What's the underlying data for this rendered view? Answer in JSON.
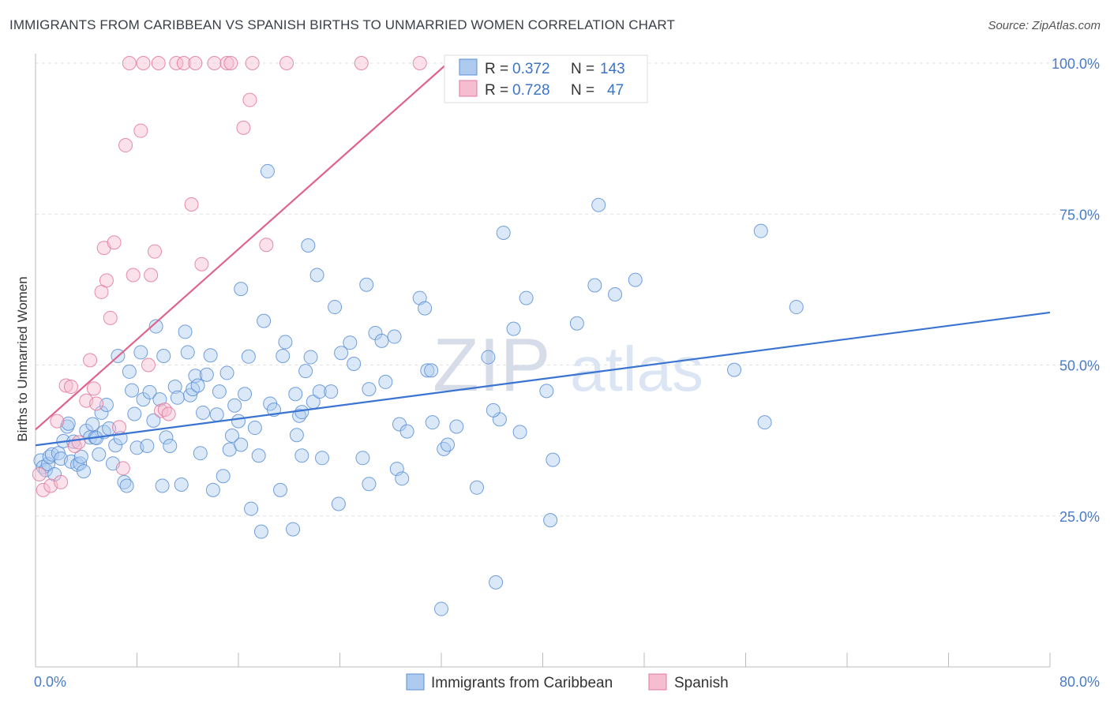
{
  "title": "IMMIGRANTS FROM CARIBBEAN VS SPANISH BIRTHS TO UNMARRIED WOMEN CORRELATION CHART",
  "source": "Source: ZipAtlas.com",
  "watermark": {
    "zip": "ZIP",
    "atlas": "atlas"
  },
  "chart_data": {
    "type": "scatter",
    "xlabel": "",
    "ylabel": "Births to Unmarried Women",
    "xlim": [
      0,
      80
    ],
    "ylim": [
      0,
      100
    ],
    "x_tick_labels": [
      {
        "value": 0,
        "label": "0.0%"
      },
      {
        "value": 80,
        "label": "80.0%"
      }
    ],
    "y_tick_labels": [
      {
        "value": 25,
        "label": "25.0%"
      },
      {
        "value": 50,
        "label": "50.0%"
      },
      {
        "value": 75,
        "label": "75.0%"
      },
      {
        "value": 100,
        "label": "100.0%"
      }
    ],
    "legend": {
      "placement": "bottom",
      "stats": [
        {
          "r_label": "R =",
          "r": "0.372",
          "n_label": "N =",
          "n": "143"
        },
        {
          "r_label": "R =",
          "r": "0.728",
          "n_label": "N =",
          "n": "47"
        }
      ]
    },
    "series": [
      {
        "name": "Immigrants from Caribbean",
        "color": "#5b8fd6",
        "fill": "#aecbef",
        "trend": {
          "x": [
            0,
            80
          ],
          "y": [
            36.7,
            58.7
          ]
        },
        "points": [
          [
            0.4,
            34.2
          ],
          [
            0.6,
            33.1
          ],
          [
            0.8,
            32.6
          ],
          [
            1.0,
            33.6
          ],
          [
            1.1,
            34.8
          ],
          [
            1.3,
            35.2
          ],
          [
            1.5,
            31.9
          ],
          [
            1.8,
            35.4
          ],
          [
            2.0,
            34.5
          ],
          [
            2.2,
            37.4
          ],
          [
            2.5,
            39.8
          ],
          [
            2.6,
            40.3
          ],
          [
            2.8,
            34.0
          ],
          [
            3.0,
            37.3
          ],
          [
            3.3,
            33.5
          ],
          [
            3.5,
            33.7
          ],
          [
            3.6,
            34.8
          ],
          [
            3.8,
            32.4
          ],
          [
            4.0,
            39.1
          ],
          [
            4.3,
            38.0
          ],
          [
            4.5,
            40.2
          ],
          [
            4.7,
            38.0
          ],
          [
            4.8,
            37.9
          ],
          [
            5.0,
            35.2
          ],
          [
            5.2,
            42.1
          ],
          [
            5.4,
            38.9
          ],
          [
            5.6,
            43.4
          ],
          [
            5.8,
            39.5
          ],
          [
            6.1,
            33.7
          ],
          [
            6.3,
            36.7
          ],
          [
            6.5,
            51.5
          ],
          [
            6.7,
            37.9
          ],
          [
            7.0,
            30.6
          ],
          [
            7.2,
            30.0
          ],
          [
            7.4,
            48.9
          ],
          [
            7.6,
            45.8
          ],
          [
            7.8,
            41.9
          ],
          [
            8.0,
            36.3
          ],
          [
            8.3,
            52.1
          ],
          [
            8.5,
            44.3
          ],
          [
            8.8,
            36.6
          ],
          [
            9.0,
            45.5
          ],
          [
            9.3,
            40.8
          ],
          [
            9.5,
            56.4
          ],
          [
            9.8,
            44.3
          ],
          [
            10.0,
            30.0
          ],
          [
            10.1,
            51.5
          ],
          [
            10.3,
            38.0
          ],
          [
            10.6,
            36.6
          ],
          [
            11.0,
            46.4
          ],
          [
            11.2,
            44.6
          ],
          [
            11.5,
            30.2
          ],
          [
            11.8,
            55.5
          ],
          [
            12.0,
            52.1
          ],
          [
            12.2,
            45.0
          ],
          [
            12.4,
            46.0
          ],
          [
            12.6,
            48.2
          ],
          [
            12.8,
            46.6
          ],
          [
            13.0,
            35.4
          ],
          [
            13.2,
            42.1
          ],
          [
            13.5,
            48.4
          ],
          [
            13.8,
            51.6
          ],
          [
            14.0,
            29.3
          ],
          [
            14.3,
            41.8
          ],
          [
            14.5,
            45.6
          ],
          [
            14.8,
            31.6
          ],
          [
            15.1,
            48.7
          ],
          [
            15.3,
            36.0
          ],
          [
            15.5,
            38.3
          ],
          [
            15.7,
            43.3
          ],
          [
            16.0,
            40.7
          ],
          [
            16.2,
            62.6
          ],
          [
            16.5,
            45.2
          ],
          [
            16.8,
            51.4
          ],
          [
            17.0,
            26.2
          ],
          [
            17.3,
            39.6
          ],
          [
            17.6,
            35.0
          ],
          [
            17.8,
            22.4
          ],
          [
            18.0,
            57.3
          ],
          [
            18.5,
            43.6
          ],
          [
            18.8,
            42.6
          ],
          [
            19.3,
            29.3
          ],
          [
            19.5,
            51.5
          ],
          [
            19.7,
            53.8
          ],
          [
            20.3,
            22.8
          ],
          [
            20.5,
            45.2
          ],
          [
            20.8,
            41.6
          ],
          [
            21.0,
            42.2
          ],
          [
            21.3,
            49.0
          ],
          [
            21.5,
            69.8
          ],
          [
            21.7,
            51.3
          ],
          [
            21.9,
            43.9
          ],
          [
            22.2,
            64.9
          ],
          [
            22.4,
            45.6
          ],
          [
            22.6,
            34.6
          ],
          [
            23.3,
            45.6
          ],
          [
            23.6,
            59.6
          ],
          [
            23.9,
            27.0
          ],
          [
            24.1,
            52.0
          ],
          [
            24.8,
            53.7
          ],
          [
            25.1,
            50.2
          ],
          [
            25.8,
            34.6
          ],
          [
            26.1,
            63.3
          ],
          [
            26.3,
            46.0
          ],
          [
            26.8,
            55.3
          ],
          [
            27.3,
            54.0
          ],
          [
            27.6,
            47.2
          ],
          [
            28.3,
            54.7
          ],
          [
            28.5,
            32.8
          ],
          [
            28.7,
            40.2
          ],
          [
            28.9,
            31.2
          ],
          [
            29.3,
            39.0
          ],
          [
            30.3,
            61.1
          ],
          [
            30.7,
            59.4
          ],
          [
            30.9,
            49.1
          ],
          [
            31.2,
            49.1
          ],
          [
            31.3,
            40.5
          ],
          [
            32.2,
            36.1
          ],
          [
            32.5,
            36.8
          ],
          [
            33.2,
            39.8
          ],
          [
            34.8,
            29.7
          ],
          [
            35.7,
            51.3
          ],
          [
            36.6,
            41.0
          ],
          [
            36.9,
            71.9
          ],
          [
            38.2,
            38.9
          ],
          [
            38.7,
            61.1
          ],
          [
            40.3,
            45.7
          ],
          [
            40.8,
            34.3
          ],
          [
            42.7,
            56.9
          ],
          [
            44.1,
            63.2
          ],
          [
            44.4,
            76.5
          ],
          [
            45.7,
            61.7
          ],
          [
            47.3,
            64.1
          ],
          [
            55.1,
            49.2
          ],
          [
            57.2,
            72.2
          ],
          [
            57.5,
            40.5
          ],
          [
            60.0,
            59.6
          ],
          [
            18.3,
            82.1
          ],
          [
            40.6,
            24.3
          ],
          [
            36.3,
            14.0
          ],
          [
            32.0,
            9.6
          ],
          [
            36.1,
            42.5
          ],
          [
            21.0,
            35.0
          ],
          [
            26.3,
            30.3
          ],
          [
            16.2,
            36.8
          ],
          [
            37.7,
            56.0
          ],
          [
            20.6,
            38.4
          ]
        ]
      },
      {
        "name": "Spanish",
        "color": "#e2789d",
        "fill": "#f6bccf",
        "trend": {
          "x": [
            0,
            32.5
          ],
          "y": [
            39.3,
            100
          ]
        },
        "points": [
          [
            0.3,
            31.9
          ],
          [
            0.6,
            29.3
          ],
          [
            1.2,
            30.0
          ],
          [
            1.7,
            40.7
          ],
          [
            2.0,
            30.6
          ],
          [
            2.4,
            46.6
          ],
          [
            2.8,
            46.4
          ],
          [
            3.1,
            36.6
          ],
          [
            3.4,
            37.2
          ],
          [
            4.0,
            44.1
          ],
          [
            4.3,
            50.8
          ],
          [
            4.6,
            46.1
          ],
          [
            4.8,
            43.6
          ],
          [
            5.2,
            62.1
          ],
          [
            5.4,
            69.4
          ],
          [
            5.6,
            64.0
          ],
          [
            5.9,
            57.8
          ],
          [
            6.2,
            70.3
          ],
          [
            6.6,
            39.7
          ],
          [
            6.9,
            32.9
          ],
          [
            7.1,
            86.4
          ],
          [
            7.4,
            100.0
          ],
          [
            7.7,
            64.9
          ],
          [
            8.3,
            88.8
          ],
          [
            8.5,
            100.0
          ],
          [
            8.9,
            50.0
          ],
          [
            9.1,
            64.9
          ],
          [
            9.4,
            68.8
          ],
          [
            9.7,
            100.0
          ],
          [
            9.9,
            42.4
          ],
          [
            10.2,
            42.6
          ],
          [
            10.5,
            41.9
          ],
          [
            11.1,
            100.0
          ],
          [
            11.7,
            100.0
          ],
          [
            12.3,
            76.6
          ],
          [
            12.6,
            100.0
          ],
          [
            13.1,
            66.7
          ],
          [
            14.1,
            100.0
          ],
          [
            15.1,
            100.0
          ],
          [
            15.4,
            100.0
          ],
          [
            16.4,
            89.3
          ],
          [
            16.9,
            93.9
          ],
          [
            17.1,
            100.0
          ],
          [
            18.2,
            69.9
          ],
          [
            19.8,
            100.0
          ],
          [
            25.7,
            100.0
          ],
          [
            30.3,
            100.0
          ]
        ]
      }
    ]
  }
}
